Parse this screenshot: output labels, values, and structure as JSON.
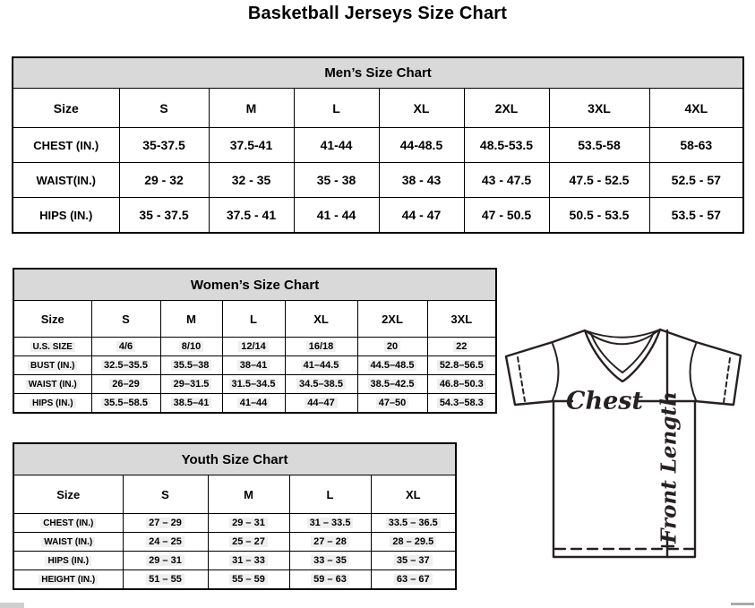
{
  "page": {
    "title": "Basketball Jerseys Size Chart"
  },
  "colors": {
    "header_band": "#d9d9d9",
    "border": "#000000",
    "diagram_ink": "#262120"
  },
  "mens": {
    "title": "Men’s Size Chart",
    "columns": [
      "Size",
      "S",
      "M",
      "L",
      "XL",
      "2XL",
      "3XL",
      "4XL"
    ],
    "rows": [
      {
        "label": "CHEST (IN.)",
        "values": [
          "35-37.5",
          "37.5-41",
          "41-44",
          "44-48.5",
          "48.5-53.5",
          "53.5-58",
          "58-63"
        ]
      },
      {
        "label": "WAIST(IN.)",
        "values": [
          "29 - 32",
          "32 - 35",
          "35 - 38",
          "38 - 43",
          "43 - 47.5",
          "47.5 - 52.5",
          "52.5 - 57"
        ]
      },
      {
        "label": "HIPS (IN.)",
        "values": [
          "35 - 37.5",
          "37.5 - 41",
          "41 - 44",
          "44 - 47",
          "47 - 50.5",
          "50.5 - 53.5",
          "53.5 - 57"
        ]
      }
    ]
  },
  "womens": {
    "title": "Women’s Size Chart",
    "columns": [
      "Size",
      "S",
      "M",
      "L",
      "XL",
      "2XL",
      "3XL"
    ],
    "rows": [
      {
        "label": "U.S. SIZE",
        "values": [
          "4/6",
          "8/10",
          "12/14",
          "16/18",
          "20",
          "22"
        ]
      },
      {
        "label": "BUST (IN.)",
        "values": [
          "32.5–35.5",
          "35.5–38",
          "38–41",
          "41–44.5",
          "44.5–48.5",
          "52.8–56.5"
        ]
      },
      {
        "label": "WAIST (IN.)",
        "values": [
          "26–29",
          "29–31.5",
          "31.5–34.5",
          "34.5–38.5",
          "38.5–42.5",
          "46.8–50.3"
        ]
      },
      {
        "label": "HIPS (IN.)",
        "values": [
          "35.5–58.5",
          "38.5–41",
          "41–44",
          "44–47",
          "47–50",
          "54.3–58.3"
        ]
      }
    ]
  },
  "youth": {
    "title": "Youth Size Chart",
    "columns": [
      "Size",
      "S",
      "M",
      "L",
      "XL"
    ],
    "rows": [
      {
        "label": "CHEST (IN.)",
        "values": [
          "27 – 29",
          "29 – 31",
          "31 – 33.5",
          "33.5 – 36.5"
        ]
      },
      {
        "label": "WAIST (IN.)",
        "values": [
          "24 – 25",
          "25 – 27",
          "27 – 28",
          "28 – 29.5"
        ]
      },
      {
        "label": "HIPS (IN.)",
        "values": [
          "29 – 31",
          "31 – 33",
          "33 – 35",
          "35 – 37"
        ]
      },
      {
        "label": "HEIGHT (IN.)",
        "values": [
          "51 – 55",
          "55 – 59",
          "59 – 63",
          "63 – 67"
        ]
      }
    ]
  },
  "diagram": {
    "chest_label": "Chest",
    "front_length_label": "Front Length"
  }
}
